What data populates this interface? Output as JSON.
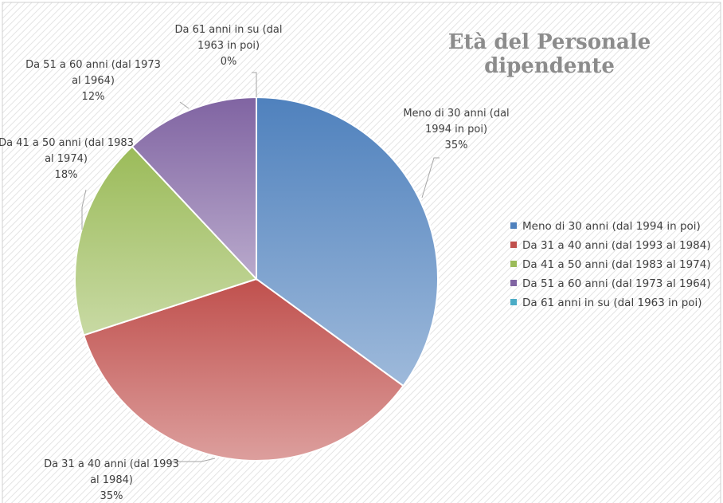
{
  "chart_data": {
    "type": "pie",
    "title": "Età del Personale dipendente",
    "categories": [
      "Meno di 30 anni (dal 1994 in poi)",
      "Da 31 a 40 anni (dal 1993 al 1984)",
      "Da 41 a 50 anni (dal 1983 al 1974)",
      "Da 51 a 60 anni (dal 1973 al 1964)",
      "Da 61 anni in su (dal 1963 in poi)"
    ],
    "values": [
      35,
      35,
      18,
      12,
      0
    ],
    "value_labels": [
      "35%",
      "35%",
      "18%",
      "12%",
      "0%"
    ],
    "colors": [
      "#4f81bd",
      "#c0504d",
      "#9bbb59",
      "#8064a2",
      "#4bacc6"
    ],
    "legend": "right"
  }
}
